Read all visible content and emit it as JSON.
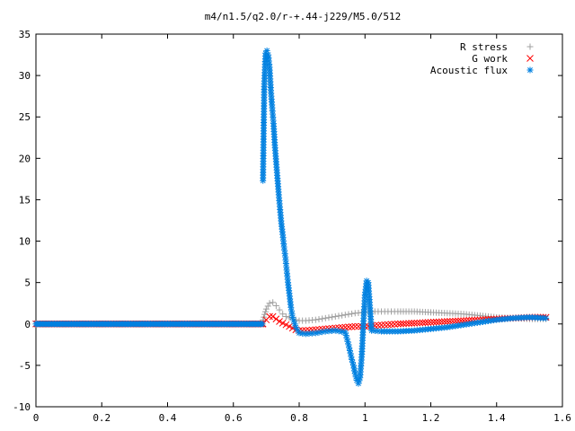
{
  "chart_data": {
    "type": "scatter",
    "title": "m4/n1.5/q2.0/r-+.44-j229/M5.0/512",
    "xlabel": "",
    "ylabel": "",
    "xlim": [
      0,
      1.6
    ],
    "ylim": [
      -10,
      35
    ],
    "x_ticks": [
      "0",
      "0.2",
      "0.4",
      "0.6",
      "0.8",
      "1",
      "1.2",
      "1.4",
      "1.6"
    ],
    "y_ticks": [
      "-10",
      "-5",
      "0",
      "5",
      "10",
      "15",
      "20",
      "25",
      "30",
      "35"
    ],
    "grid": false,
    "legend_position": "top-right",
    "series": [
      {
        "name": "R stress",
        "marker": "plus",
        "color": "#a0a0a0",
        "x": [
          0.69,
          0.7,
          0.71,
          0.72,
          0.73,
          0.74,
          0.75,
          0.76,
          0.78,
          0.8,
          0.82,
          0.85,
          0.88,
          0.91,
          0.94,
          0.97,
          1.0,
          1.03,
          1.06,
          1.1,
          1.15,
          1.2,
          1.25,
          1.3,
          1.35,
          1.4,
          1.45,
          1.5,
          1.55
        ],
        "y": [
          0.5,
          1.8,
          2.5,
          2.6,
          2.2,
          1.7,
          1.2,
          0.9,
          0.6,
          0.4,
          0.4,
          0.5,
          0.7,
          0.9,
          1.1,
          1.3,
          1.4,
          1.5,
          1.5,
          1.5,
          1.5,
          1.4,
          1.3,
          1.2,
          1.0,
          0.8,
          0.7,
          0.6,
          0.6
        ]
      },
      {
        "name": "G work",
        "marker": "cross",
        "color": "#ff0000",
        "x": [
          0.69,
          0.7,
          0.71,
          0.72,
          0.73,
          0.74,
          0.75,
          0.76,
          0.77,
          0.78,
          0.79,
          0.8,
          0.82,
          0.85,
          0.88,
          0.91,
          0.94,
          0.97,
          1.0,
          1.03,
          1.06,
          1.1,
          1.15,
          1.2,
          1.25,
          1.3,
          1.35,
          1.4,
          1.45,
          1.5,
          1.55
        ],
        "y": [
          0,
          0.5,
          0.9,
          0.9,
          0.6,
          0.3,
          0.1,
          -0.1,
          -0.3,
          -0.5,
          -0.7,
          -0.8,
          -0.8,
          -0.7,
          -0.6,
          -0.5,
          -0.4,
          -0.3,
          -0.3,
          -0.2,
          -0.1,
          0,
          0.1,
          0.2,
          0.3,
          0.4,
          0.5,
          0.6,
          0.7,
          0.8,
          0.8
        ]
      },
      {
        "name": "Acoustic flux",
        "marker": "star",
        "color": "#0080e0",
        "x": [
          0.69,
          0.694,
          0.698,
          0.702,
          0.706,
          0.71,
          0.714,
          0.718,
          0.722,
          0.726,
          0.73,
          0.734,
          0.738,
          0.742,
          0.746,
          0.75,
          0.754,
          0.758,
          0.762,
          0.766,
          0.77,
          0.775,
          0.78,
          0.79,
          0.8,
          0.82,
          0.85,
          0.88,
          0.91,
          0.94,
          0.95,
          0.96,
          0.965,
          0.97,
          0.975,
          0.98,
          0.985,
          0.99,
          0.995,
          1.0,
          1.005,
          1.01,
          1.02,
          1.05,
          1.1,
          1.15,
          1.2,
          1.25,
          1.3,
          1.35,
          1.4,
          1.45,
          1.5,
          1.55
        ],
        "y": [
          17.3,
          29.0,
          32.7,
          33.0,
          32.5,
          31.0,
          28.2,
          26.1,
          24.2,
          21.6,
          19.6,
          17.6,
          15.6,
          13.8,
          12.1,
          10.8,
          9.3,
          8.1,
          6.5,
          5.0,
          3.7,
          2.0,
          0.8,
          -0.4,
          -1.1,
          -1.2,
          -1.1,
          -0.9,
          -0.8,
          -1.0,
          -2.5,
          -4.3,
          -5.0,
          -6.0,
          -6.8,
          -7.2,
          -6.5,
          -4.0,
          0,
          3.5,
          5.2,
          5.0,
          -0.8,
          -0.9,
          -0.9,
          -0.8,
          -0.6,
          -0.4,
          -0.1,
          0.2,
          0.5,
          0.7,
          0.8,
          0.7
        ]
      }
    ]
  }
}
